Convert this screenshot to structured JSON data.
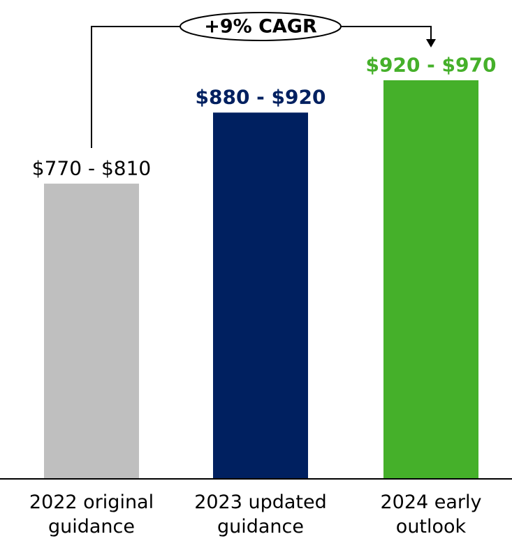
{
  "chart_data": {
    "type": "bar",
    "categories": [
      "2022 original guidance",
      "2023 updated guidance",
      "2024 early outlook"
    ],
    "values": [
      810,
      920,
      970
    ],
    "value_labels": [
      "$770 - $810",
      "$880 - $920",
      "$920 - $970"
    ],
    "colors": [
      "#bfbfbf",
      "#002060",
      "#45b02a"
    ],
    "value_label_colors": [
      "#000000",
      "#002060",
      "#45b02a"
    ],
    "ylim": [
      353,
      970
    ],
    "annotation": "+9% CAGR"
  }
}
